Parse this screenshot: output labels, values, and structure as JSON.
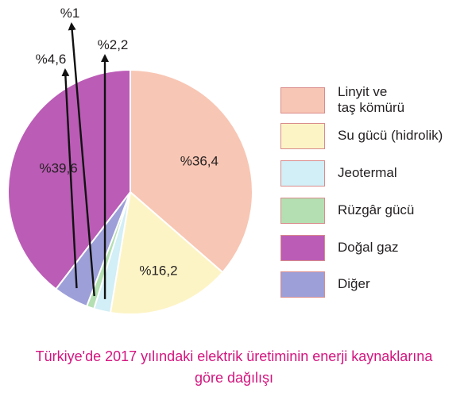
{
  "chart_data": {
    "type": "pie",
    "title": "Türkiye'de 2017 yılındaki elektrik üretiminin enerji kaynaklarına göre dağılışı",
    "title_lines": [
      "Türkiye'de 2017 yılındaki elektrik üretiminin enerji kaynaklarına",
      "göre dağılışı"
    ],
    "legend_position": "right",
    "slices": [
      {
        "name": "Linyit ve\ntaş kömürü",
        "value": 36.4,
        "label": "%36,4",
        "color": "#f8c6b4"
      },
      {
        "name": "Su gücü (hidrolik)",
        "value": 16.2,
        "label": "%16,2",
        "color": "#fdf4c6"
      },
      {
        "name": "Jeotermal",
        "value": 2.2,
        "label": "%2,2",
        "color": "#d2eef6"
      },
      {
        "name": "Rüzgâr gücü",
        "value": 1,
        "label": "%1",
        "color": "#b3dfb3"
      },
      {
        "name": "Diğer",
        "value": 4.6,
        "label": "%4,6",
        "color": "#9d9fd9"
      },
      {
        "name": "Doğal gaz",
        "value": 39.6,
        "label": "%39,6",
        "color": "#bb5cb6"
      }
    ],
    "legend_order": [
      0,
      1,
      2,
      3,
      5,
      4
    ]
  }
}
